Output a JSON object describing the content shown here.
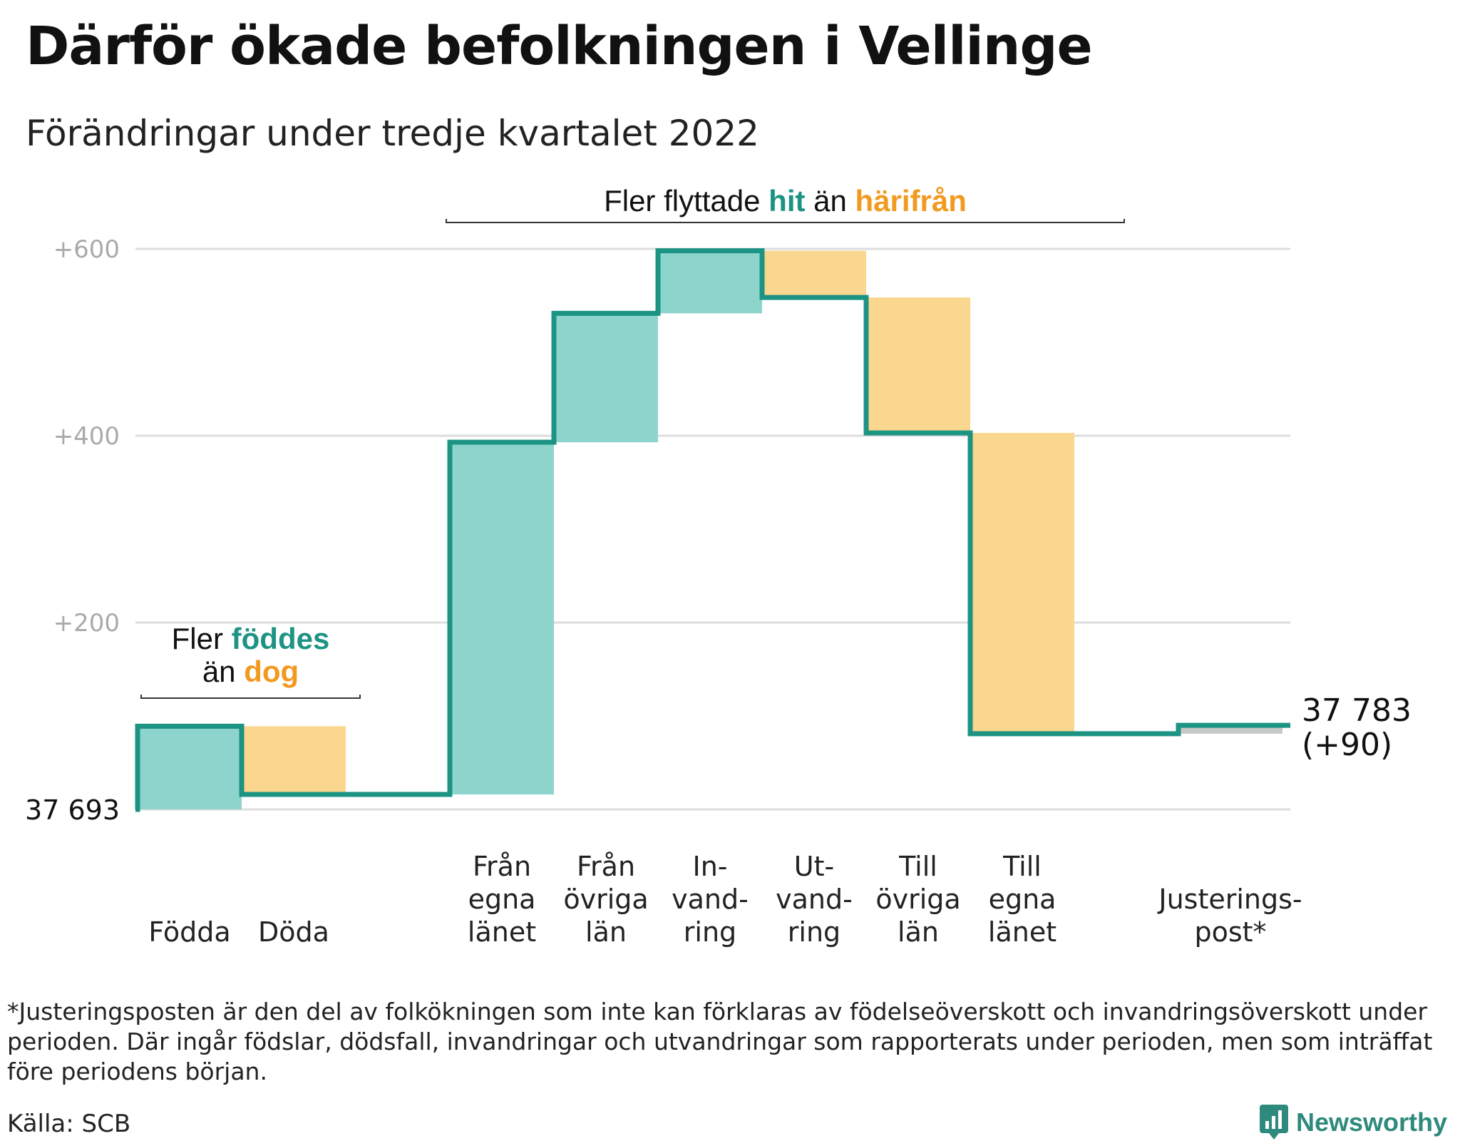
{
  "title": "Därför ökade befolkningen i Vellinge",
  "subtitle": "Förändringar under tredje kvartalet 2022",
  "colors": {
    "increase": "#8dd5cc",
    "decrease": "#fad68e",
    "adjustment": "#c8c8c8",
    "line": "#1d9384",
    "teal_text": "#1d9384",
    "orange_text": "#f29a1f",
    "grid": "#dddddd",
    "tick_text": "#aaaaaa"
  },
  "chart_data": {
    "type": "waterfall",
    "base_value": 37693,
    "base_label": "37 693",
    "end_label": "37 783",
    "end_change_label": "(+90)",
    "ylim": [
      0,
      600
    ],
    "yticks": [
      {
        "value": 200,
        "label": "+200"
      },
      {
        "value": 400,
        "label": "+400"
      },
      {
        "value": 600,
        "label": "+600"
      }
    ],
    "steps": [
      {
        "label": [
          "Födda"
        ],
        "change": 89
      },
      {
        "label": [
          "Döda"
        ],
        "change": -73
      },
      {
        "label": [],
        "change": 0
      },
      {
        "label": [
          "Från",
          "egna",
          "länet"
        ],
        "change": 377
      },
      {
        "label": [
          "Från",
          "övriga",
          "län"
        ],
        "change": 138
      },
      {
        "label": [
          "In-",
          "vand-",
          "ring"
        ],
        "change": 67
      },
      {
        "label": [
          "Ut-",
          "vand-",
          "ring"
        ],
        "change": -50
      },
      {
        "label": [
          "Till",
          "övriga",
          "län"
        ],
        "change": -145
      },
      {
        "label": [
          "Till",
          "egna",
          "länet"
        ],
        "change": -322
      },
      {
        "label": [],
        "change": 0
      },
      {
        "label": [
          "Justerings-",
          "post*"
        ],
        "change": 9
      }
    ],
    "annotations": [
      {
        "parts": [
          {
            "text": "Fler flyttade ",
            "tone": "plain"
          },
          {
            "text": "hit",
            "tone": "teal"
          },
          {
            "text": " än ",
            "tone": "plain"
          },
          {
            "text": "härifrån",
            "tone": "orange"
          }
        ]
      },
      {
        "lines": [
          [
            {
              "text": "Fler ",
              "tone": "plain"
            },
            {
              "text": "föddes",
              "tone": "teal"
            }
          ],
          [
            {
              "text": "än ",
              "tone": "plain"
            },
            {
              "text": "dog",
              "tone": "orange"
            }
          ]
        ]
      }
    ]
  },
  "footnote": "*Justeringsposten är den del av folkökningen som inte kan förklaras av födelseöverskott och invandringsöverskott under perioden. Där ingår födslar, dödsfall, invandringar och utvandringar som rapporterats under perioden, men som inträffat före periodens början.",
  "source": "Källa: SCB",
  "logo": {
    "text": "Newsworthy",
    "icon": "newsworthy-logo-icon"
  }
}
